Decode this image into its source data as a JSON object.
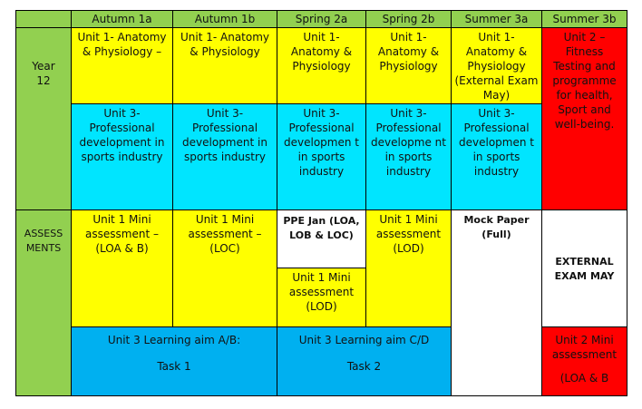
{
  "header": {
    "col1": "Autumn 1a",
    "col2": "Autumn 1b",
    "col3": "Spring 2a",
    "col4": "Spring 2b",
    "col5": "Summer 3a",
    "col6": "Summer 3b"
  },
  "year12": {
    "label_line1": "Year",
    "label_line2": "12",
    "unit1": {
      "c1": "Unit 1- Anatomy & Physiology –",
      "c2": "Unit 1- Anatomy & Physiology",
      "c3": "Unit 1- Anatomy & Physiology",
      "c4": "Unit 1- Anatomy & Physiology",
      "c5": "Unit 1- Anatomy & Physiology (External Exam May)"
    },
    "unit2_red": "Unit 2 – Fitness Testing and programme for health, Sport and well-being.",
    "unit3": {
      "c1": "Unit 3- Professional development in sports industry",
      "c2": "Unit 3- Professional development in sports industry",
      "c3": "Unit 3- Professional developmen t in sports industry",
      "c4": "Unit 3- Professional developme nt in sports industry",
      "c5": "Unit 3- Professional developmen t in sports industry"
    }
  },
  "assessments": {
    "label_line1": "ASSESS",
    "label_line2": "MENTS",
    "c1": "Unit 1 Mini assessment – (LOA & B)",
    "c2": "Unit 1 Mini assessment – (LOC)",
    "ppe": "PPE Jan (LOA, LOB & LOC)",
    "c3_lower": "Unit 1 Mini assessment (LOD)",
    "c4": "Unit 1 Mini assessment (LOD)",
    "mock": "Mock Paper (Full)",
    "external": "EXTERNAL EXAM MAY",
    "unit2_mini": "Unit 2 Mini assessment",
    "unit2_mini_sub": "(LOA & B",
    "task_ab_title": "Unit 3 Learning aim A/B:",
    "task_ab_sub": "Task 1",
    "task_cd_title": "Unit 3 Learning aim C/D",
    "task_cd_sub": "Task 2"
  }
}
